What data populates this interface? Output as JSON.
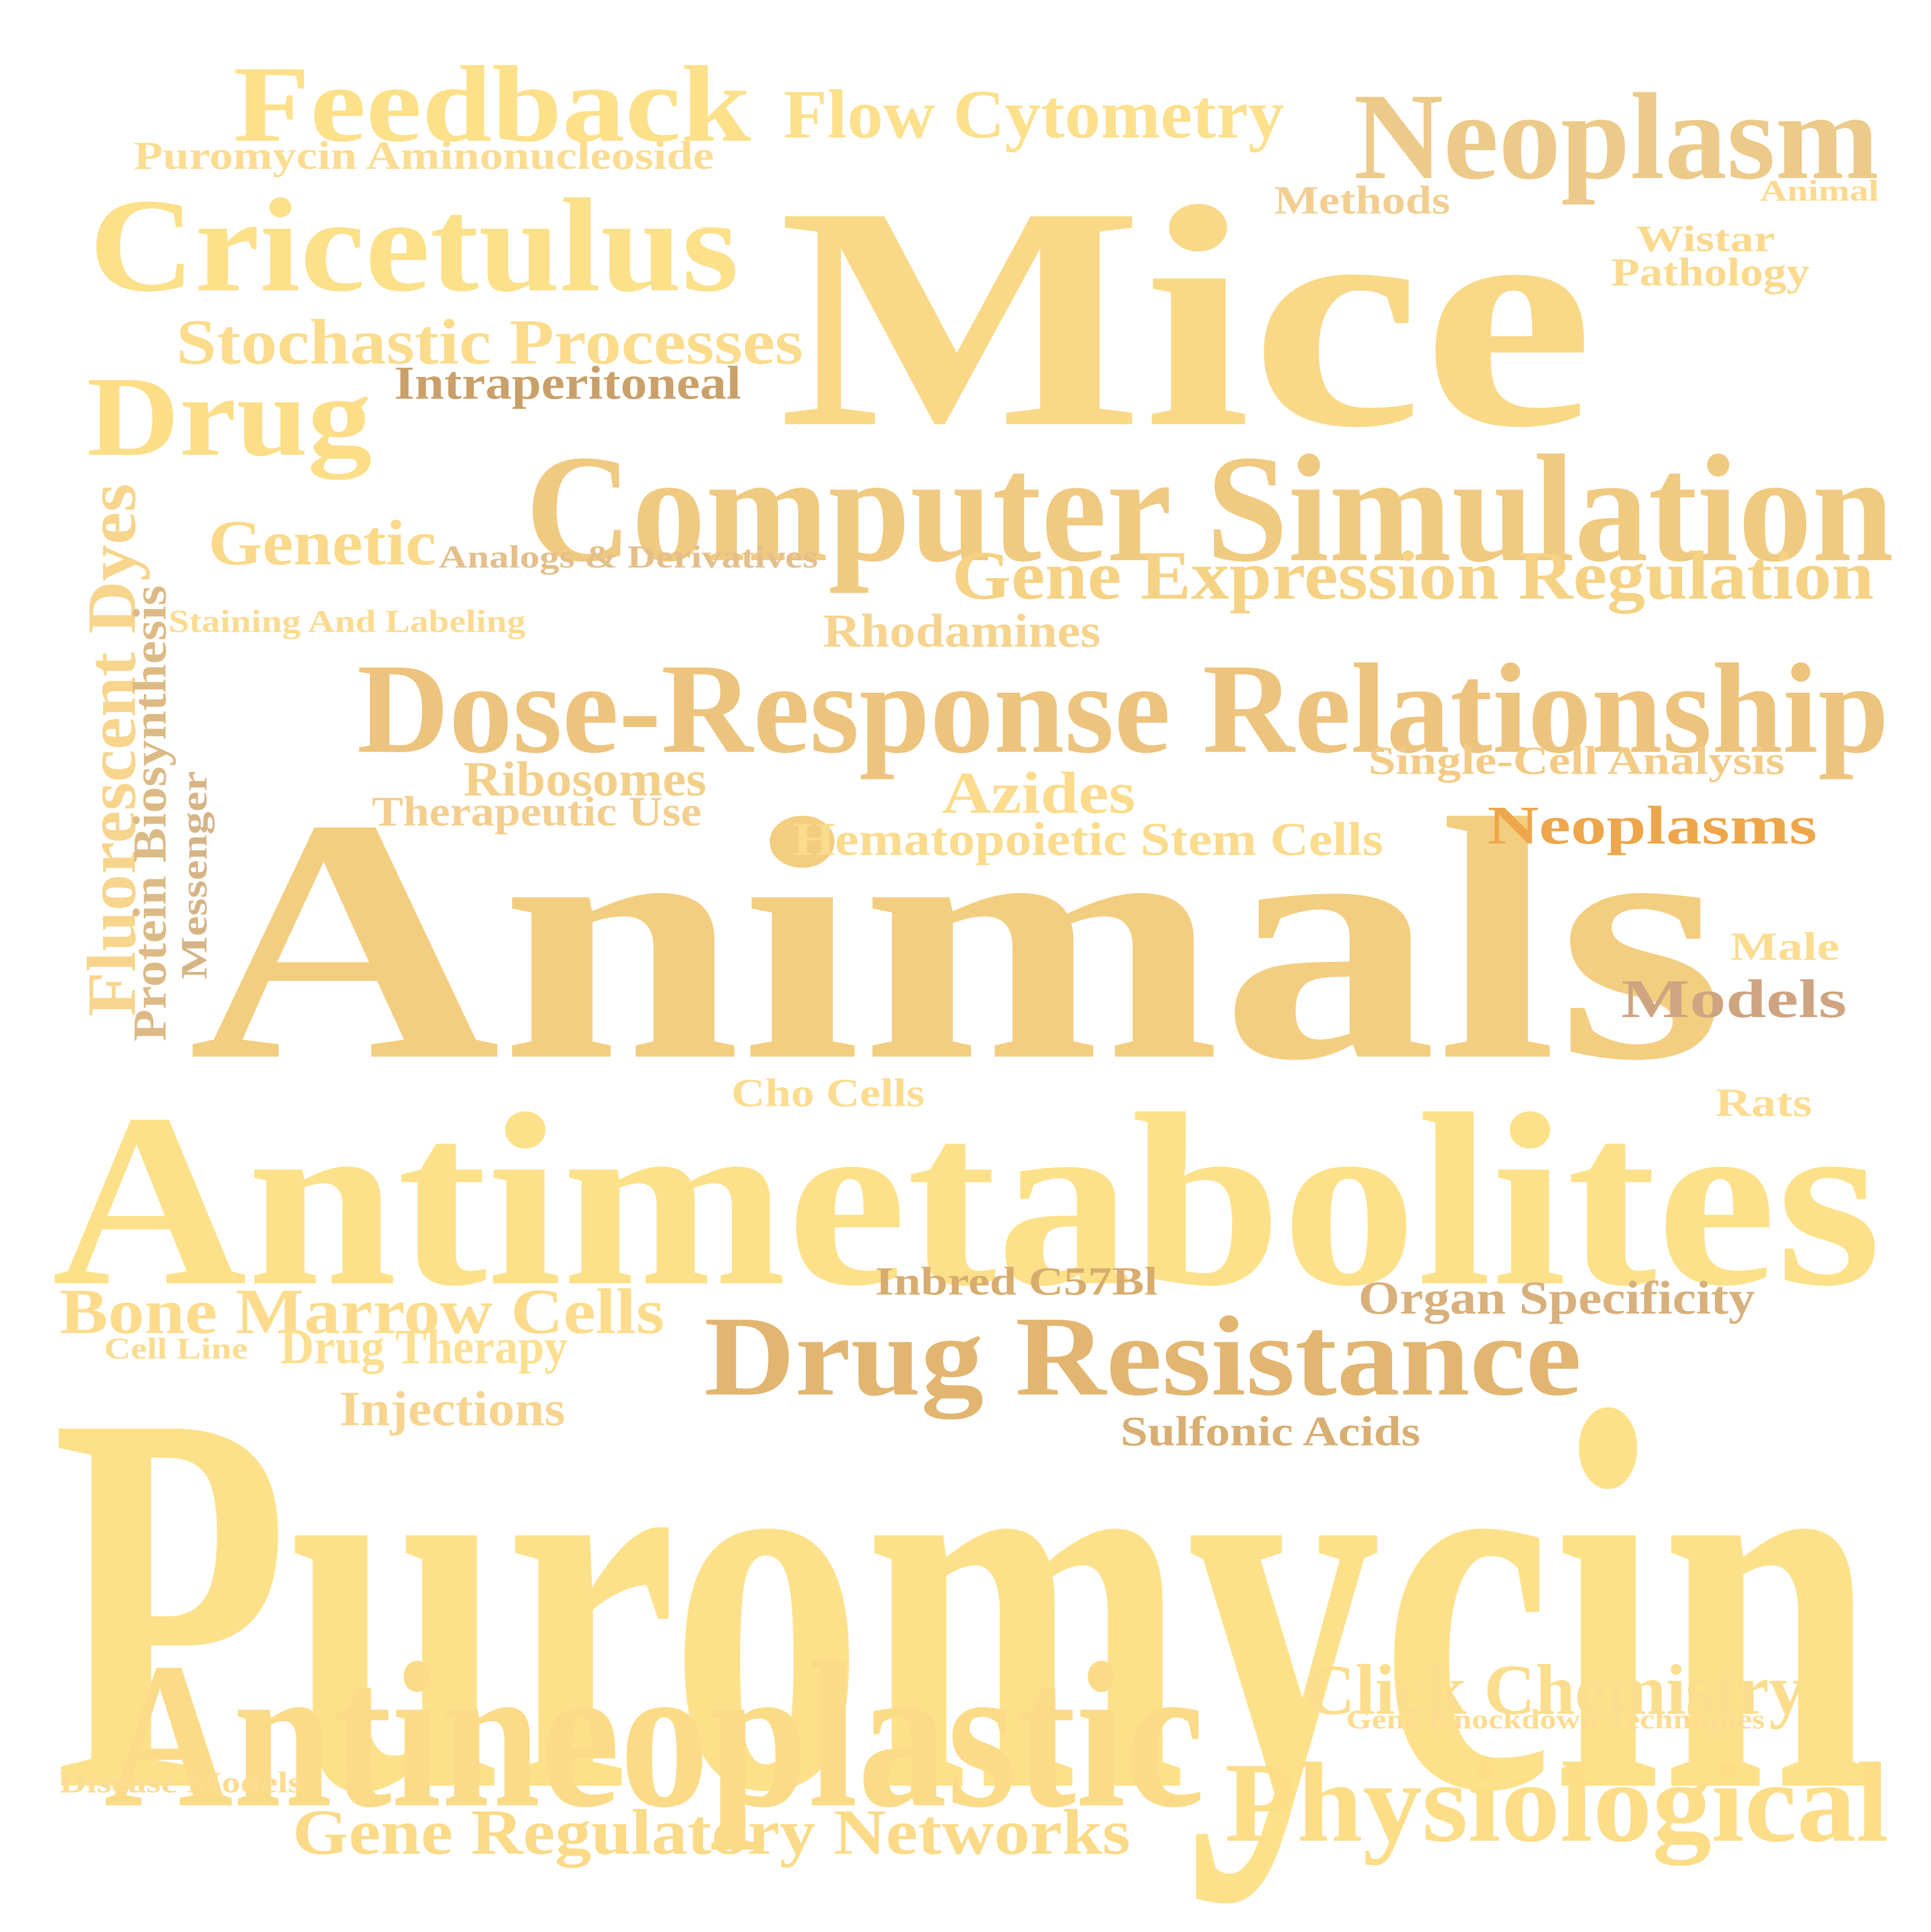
{
  "words": [
    {
      "text": "Puromycin",
      "color": "#fde18a"
    },
    {
      "text": "Animals",
      "color": "#f3ce80"
    },
    {
      "text": "Antimetabolites",
      "color": "#fde18a"
    },
    {
      "text": "Mice",
      "color": "#f9d987"
    },
    {
      "text": "Antineoplastic",
      "color": "#fbdb88"
    },
    {
      "text": "Computer Simulation",
      "color": "#efca80"
    },
    {
      "text": "Dose-Response Relationship",
      "color": "#edc47e"
    },
    {
      "text": "Drug Resistance",
      "color": "#e2b570"
    },
    {
      "text": "Cricetulus",
      "color": "#fce08a"
    },
    {
      "text": "Feedback",
      "color": "#fde08a"
    },
    {
      "text": "Neoplasm",
      "color": "#ecca8a"
    },
    {
      "text": "Physiological",
      "color": "#fcdd88"
    },
    {
      "text": "Drug",
      "color": "#fcde88"
    },
    {
      "text": "Gene Expression Regulation",
      "color": "#f5d284"
    },
    {
      "text": "Flow Cytometry",
      "color": "#fce08c"
    },
    {
      "text": "Bone Marrow Cells",
      "color": "#fcdc8c"
    },
    {
      "text": "Click Chemistry",
      "color": "#fbdd8e"
    },
    {
      "text": "Stochastic Processes",
      "color": "#fbdc8d"
    },
    {
      "text": "Gene Regulatory Networks",
      "color": "#fbda88"
    },
    {
      "text": "Neoplasms",
      "color": "#eea64a"
    },
    {
      "text": "Genetic",
      "color": "#fbd98a"
    },
    {
      "text": "Fluorescent Dyes",
      "color": "#f7d58c"
    },
    {
      "text": "Azides",
      "color": "#fcdc8c"
    },
    {
      "text": "Models",
      "color": "#cfa481"
    },
    {
      "text": "Hematopoietic Stem Cells",
      "color": "#fbdb8c"
    },
    {
      "text": "Organ Specificity",
      "color": "#d8b07c"
    },
    {
      "text": "Intraperitoneal",
      "color": "#caa06a"
    },
    {
      "text": "Ribosomes",
      "color": "#f3d08a"
    },
    {
      "text": "Injections",
      "color": "#f6d490"
    },
    {
      "text": "Rhodamines",
      "color": "#f6d38e"
    },
    {
      "text": "Drug Therapy",
      "color": "#fcdf90"
    },
    {
      "text": "Puromycin Aminonucleoside",
      "color": "#fbdc90"
    },
    {
      "text": "Protein Biosynthesis",
      "color": "#dcba86"
    },
    {
      "text": "Therapeutic Use",
      "color": "#f3ce8e"
    },
    {
      "text": "Single-Cell Analysis",
      "color": "#f3cb86"
    },
    {
      "text": "Inbred C57Bl",
      "color": "#d8ac6e"
    },
    {
      "text": "Sulfonic Acids",
      "color": "#d8ae72"
    },
    {
      "text": "Methods",
      "color": "#f2ce90"
    },
    {
      "text": "Pathology",
      "color": "#fbda8e"
    },
    {
      "text": "Wistar",
      "color": "#fbd98c"
    },
    {
      "text": "Cho Cells",
      "color": "#fbdc90"
    },
    {
      "text": "Male",
      "color": "#fcdc90"
    },
    {
      "text": "Rats",
      "color": "#fcdc90"
    },
    {
      "text": "Analogs & Derivatives",
      "color": "#e4bf8a"
    },
    {
      "text": "Staining And Labeling",
      "color": "#fcdb90"
    },
    {
      "text": "Messenger",
      "color": "#d6b486"
    },
    {
      "text": "Animal",
      "color": "#fbd98e"
    },
    {
      "text": "Cell Line",
      "color": "#fbdc90"
    },
    {
      "text": "Disease Models",
      "color": "#fbdc90"
    },
    {
      "text": "Gene Knockdown Techniques",
      "color": "#fcdc90"
    }
  ]
}
